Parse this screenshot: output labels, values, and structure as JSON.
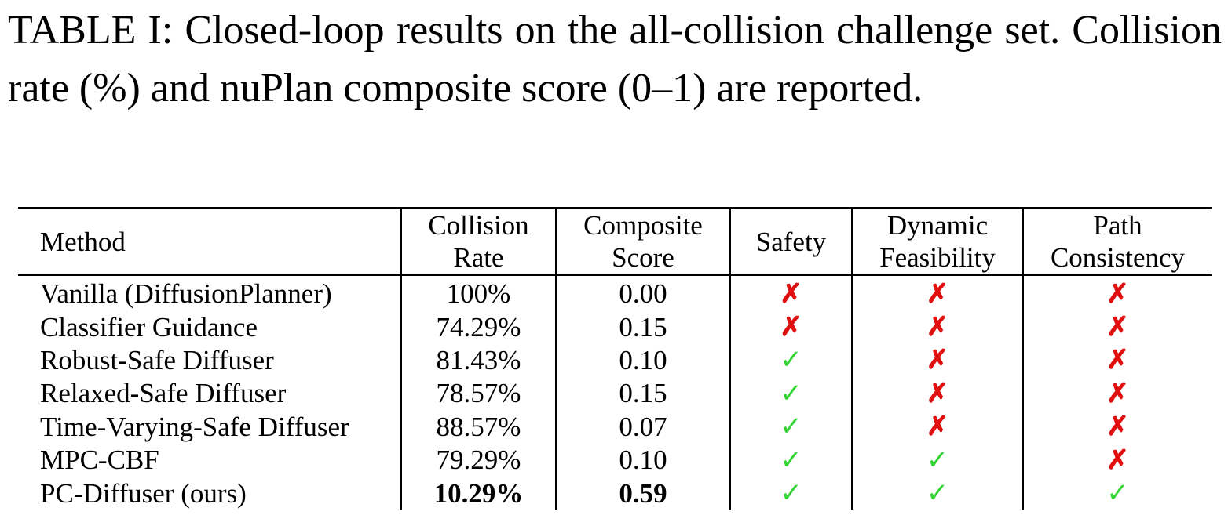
{
  "caption": "TABLE I: Closed-loop results on the all-collision challenge set. Collision rate (%) and nuPlan composite score (0–1) are reported.",
  "columns": [
    {
      "line1": "Method",
      "line2": ""
    },
    {
      "line1": "Collision",
      "line2": "Rate"
    },
    {
      "line1": "Composite",
      "line2": "Score"
    },
    {
      "line1": "Safety",
      "line2": ""
    },
    {
      "line1": "Dynamic",
      "line2": "Feasibility"
    },
    {
      "line1": "Path",
      "line2": "Consistency"
    }
  ],
  "rows": [
    {
      "method": "Vanilla (DiffusionPlanner)",
      "collision_rate": "100%",
      "composite_score": "0.00",
      "safety": "✗",
      "dynamic_feasibility": "✗",
      "path_consistency": "✗",
      "safety_ok": false,
      "dynamic_ok": false,
      "path_ok": false,
      "bold": false
    },
    {
      "method": "Classifier Guidance",
      "collision_rate": "74.29%",
      "composite_score": "0.15",
      "safety": "✗",
      "dynamic_feasibility": "✗",
      "path_consistency": "✗",
      "safety_ok": false,
      "dynamic_ok": false,
      "path_ok": false,
      "bold": false
    },
    {
      "method": "Robust-Safe Diffuser",
      "collision_rate": "81.43%",
      "composite_score": "0.10",
      "safety": "✓",
      "dynamic_feasibility": "✗",
      "path_consistency": "✗",
      "safety_ok": true,
      "dynamic_ok": false,
      "path_ok": false,
      "bold": false
    },
    {
      "method": "Relaxed-Safe Diffuser",
      "collision_rate": "78.57%",
      "composite_score": "0.15",
      "safety": "✓",
      "dynamic_feasibility": "✗",
      "path_consistency": "✗",
      "safety_ok": true,
      "dynamic_ok": false,
      "path_ok": false,
      "bold": false
    },
    {
      "method": "Time-Varying-Safe Diffuser",
      "collision_rate": "88.57%",
      "composite_score": "0.07",
      "safety": "✓",
      "dynamic_feasibility": "✗",
      "path_consistency": "✗",
      "safety_ok": true,
      "dynamic_ok": false,
      "path_ok": false,
      "bold": false
    },
    {
      "method": "MPC-CBF",
      "collision_rate": "79.29%",
      "composite_score": "0.10",
      "safety": "✓",
      "dynamic_feasibility": "✓",
      "path_consistency": "✗",
      "safety_ok": true,
      "dynamic_ok": true,
      "path_ok": false,
      "bold": false
    },
    {
      "method": "PC-Diffuser (ours)",
      "collision_rate": "10.29%",
      "composite_score": "0.59",
      "safety": "✓",
      "dynamic_feasibility": "✓",
      "path_consistency": "✓",
      "safety_ok": true,
      "dynamic_ok": true,
      "path_ok": true,
      "bold": true
    }
  ],
  "colors": {
    "check": "#33d433",
    "cross": "#e01010"
  }
}
